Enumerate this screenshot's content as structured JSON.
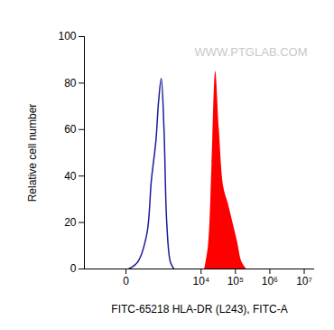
{
  "chart_data": {
    "type": "histogram",
    "x_label": "FITC-65218 HLA-DR (L243), FITC-A",
    "y_label": "Relative cell number",
    "annotations": [
      {
        "text": "WWW.PTGLAB.COM"
      }
    ],
    "log": "x",
    "xlim": [
      -1000,
      20000000
    ],
    "xticks": [
      0,
      {
        "value": 10000,
        "label": "10⁴"
      },
      {
        "value": 100000,
        "label": "10⁵"
      },
      {
        "value": 1000000,
        "label": "10⁶"
      },
      {
        "value": 10000000,
        "label": "10⁷"
      }
    ],
    "ylim": [
      0,
      100
    ],
    "yticks": [
      0,
      20,
      40,
      60,
      80,
      100
    ],
    "series": [
      {
        "type": "line",
        "color": "#1c1c9c",
        "x": [
          13,
          79,
          200,
          294,
          422,
          518,
          634,
          775,
          944,
          1220,
          1570
        ],
        "values": [
          0,
          3,
          15,
          38,
          55,
          72,
          82,
          60,
          20,
          3,
          0
        ]
      },
      {
        "type": "area",
        "color": "#ff0000",
        "x": [
          12800,
          16400,
          20800,
          26600,
          33900,
          45900,
          62200,
          84000,
          113600,
          154000,
          209000
        ],
        "values": [
          0,
          10,
          45,
          85,
          60,
          35,
          28,
          20,
          12,
          3,
          0
        ]
      }
    ]
  }
}
